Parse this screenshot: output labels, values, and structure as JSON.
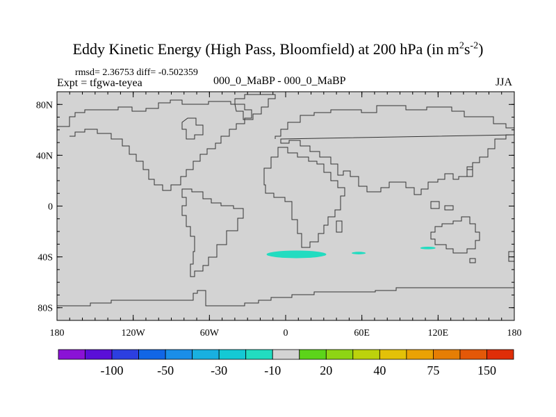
{
  "header": {
    "title": "Eddy Kinetic Energy (High Pass, Bloomfield) at 200 hPa (in m",
    "unit_sup1": "2",
    "unit_mid": "s",
    "unit_sup2": "-2",
    "unit_close": ")",
    "stats": "rmsd= 2.36753 diff= -0.502359",
    "expt": "Expt = tfgwa-teyea",
    "diff_label": "000_0_MaBP - 000_0_MaBP",
    "season": "JJA"
  },
  "chart_data": {
    "type": "heatmap",
    "title": "Eddy Kinetic Energy (High Pass, Bloomfield) at 200 hPa (in m^2 s^-2)",
    "projection": "cylindrical-equidistant",
    "lon_range": [
      -180,
      180
    ],
    "lat_range": [
      -90,
      90
    ],
    "x_ticks": [
      {
        "lon": -180,
        "label": "180"
      },
      {
        "lon": -120,
        "label": "120W"
      },
      {
        "lon": -60,
        "label": "60W"
      },
      {
        "lon": 0,
        "label": "0"
      },
      {
        "lon": 60,
        "label": "60E"
      },
      {
        "lon": 120,
        "label": "120E"
      },
      {
        "lon": 180,
        "label": "180"
      }
    ],
    "y_ticks": [
      {
        "lat": 80,
        "label": "80N"
      },
      {
        "lat": 40,
        "label": "40N"
      },
      {
        "lat": 0,
        "label": "0"
      },
      {
        "lat": -40,
        "label": "40S"
      },
      {
        "lat": -80,
        "label": "80S"
      }
    ],
    "background_value_bin": "-10 to 20",
    "anomalies": [
      {
        "name": "south-atlantic-negative",
        "lon": [
          -15,
          32
        ],
        "lat": [
          -41,
          -35
        ],
        "bin": "-30 to -10"
      },
      {
        "name": "south-indian-negative",
        "lon": [
          52,
          63
        ],
        "lat": [
          -38,
          -36
        ],
        "bin": "-30 to -10"
      },
      {
        "name": "west-australia-negative",
        "lon": [
          106,
          118
        ],
        "lat": [
          -34,
          -32
        ],
        "bin": "-30 to -10"
      }
    ],
    "colorbar": {
      "colors": [
        "#8a12d6",
        "#5a0fd8",
        "#2c3fe0",
        "#1166e6",
        "#1a8ee8",
        "#19b0e0",
        "#14c9d4",
        "#22dcc0",
        "#d3d3d3",
        "#5cd41a",
        "#8ed414",
        "#bcd20c",
        "#e3c108",
        "#eaa204",
        "#e67e04",
        "#e45808",
        "#df2e08"
      ],
      "labels": [
        {
          "after_box": 2,
          "text": "-100"
        },
        {
          "after_box": 4,
          "text": "-50"
        },
        {
          "after_box": 6,
          "text": "-30"
        },
        {
          "after_box": 8,
          "text": "-10"
        },
        {
          "after_box": 10,
          "text": "20"
        },
        {
          "after_box": 12,
          "text": "40"
        },
        {
          "after_box": 14,
          "text": "75"
        },
        {
          "after_box": 16,
          "text": "150"
        }
      ]
    }
  }
}
